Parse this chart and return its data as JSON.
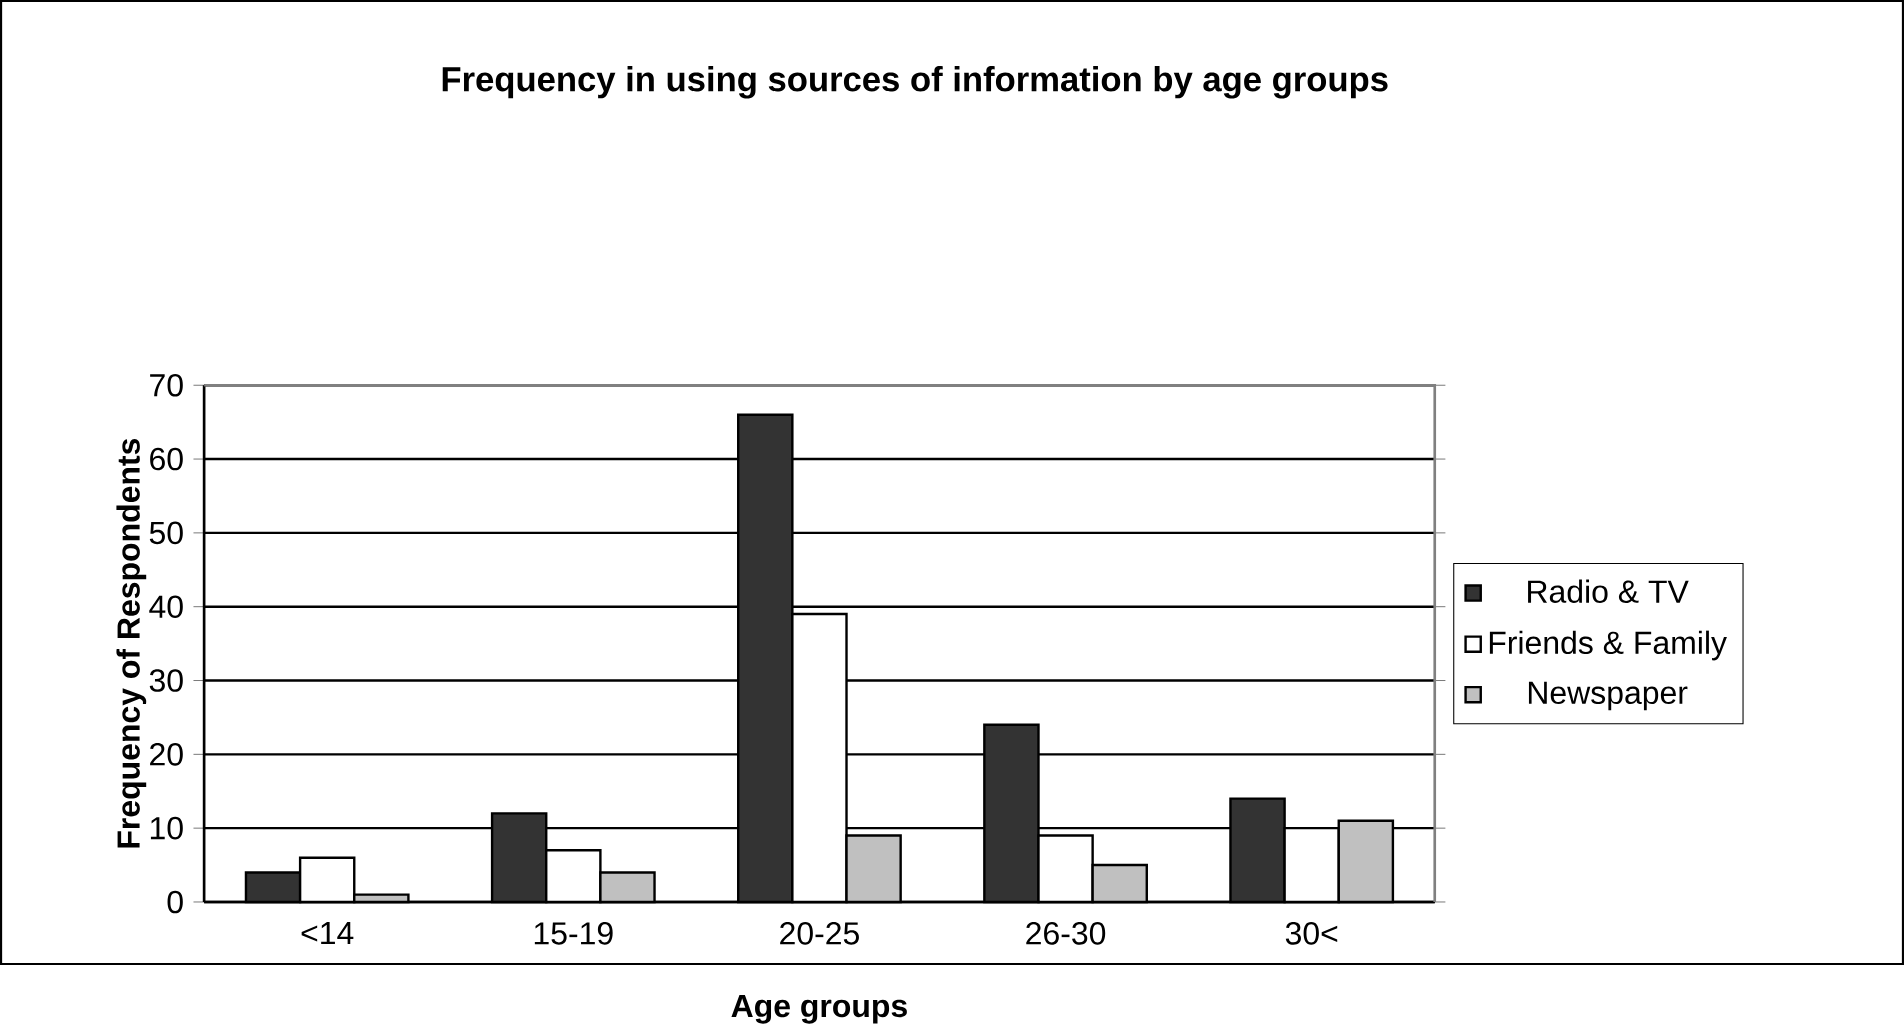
{
  "chart_data": {
    "type": "bar",
    "title": "Frequency in using sources of information by age groups",
    "xlabel": "Age groups",
    "ylabel": "Frequency of Respondents",
    "categories": [
      "<14",
      "15-19",
      "20-25",
      "26-30",
      "30<"
    ],
    "series": [
      {
        "name": "Radio & TV",
        "color": "#333333",
        "values": [
          4,
          12,
          66,
          24,
          14
        ]
      },
      {
        "name": "Friends & Family",
        "color": "#ffffff",
        "values": [
          6,
          7,
          39,
          9,
          10
        ]
      },
      {
        "name": "Newspaper",
        "color": "#c0c0c0",
        "values": [
          1,
          4,
          9,
          5,
          11
        ]
      }
    ],
    "ylim": [
      0,
      70
    ],
    "yticks": [
      0,
      10,
      20,
      30,
      40,
      50,
      60,
      70
    ],
    "grid": "y",
    "legend": "right"
  }
}
